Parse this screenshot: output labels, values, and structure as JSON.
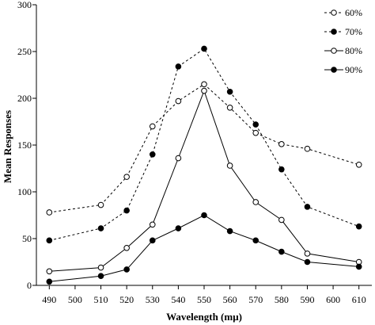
{
  "chart_data": {
    "type": "line",
    "xlabel": "Wavelength (mμ)",
    "ylabel": "Mean Responses",
    "x": [
      490,
      500,
      510,
      520,
      530,
      540,
      550,
      560,
      570,
      580,
      590,
      600,
      610
    ],
    "x_ticks": [
      "490",
      "500",
      "510",
      "520",
      "530",
      "540",
      "550",
      "560",
      "570",
      "580",
      "590",
      "600",
      "610"
    ],
    "y_ticks": [
      "0",
      "50",
      "100",
      "150",
      "200",
      "250",
      "300"
    ],
    "xlim": [
      485,
      615
    ],
    "ylim": [
      0,
      300
    ],
    "grid": false,
    "legend_position": "top-right",
    "series": [
      {
        "name": "60%",
        "line": "dashed",
        "marker": "open-circle",
        "x": [
          490,
          510,
          520,
          530,
          540,
          550,
          560,
          570,
          580,
          590,
          610
        ],
        "values": [
          78,
          86,
          116,
          170,
          197,
          215,
          190,
          163,
          151,
          146,
          129
        ]
      },
      {
        "name": "70%",
        "line": "dashed",
        "marker": "filled-circle",
        "x": [
          490,
          510,
          520,
          530,
          540,
          550,
          560,
          570,
          580,
          590,
          610
        ],
        "values": [
          48,
          61,
          80,
          140,
          234,
          253,
          207,
          172,
          124,
          84,
          63
        ]
      },
      {
        "name": "80%",
        "line": "solid",
        "marker": "open-circle",
        "x": [
          490,
          510,
          520,
          530,
          540,
          550,
          560,
          570,
          580,
          590,
          610
        ],
        "values": [
          15,
          19,
          40,
          65,
          136,
          208,
          128,
          89,
          70,
          34,
          25
        ]
      },
      {
        "name": "90%",
        "line": "solid",
        "marker": "filled-circle",
        "x": [
          490,
          510,
          520,
          530,
          540,
          550,
          560,
          570,
          580,
          590,
          610
        ],
        "values": [
          4,
          10,
          17,
          48,
          61,
          75,
          58,
          48,
          36,
          25,
          20
        ]
      }
    ]
  }
}
